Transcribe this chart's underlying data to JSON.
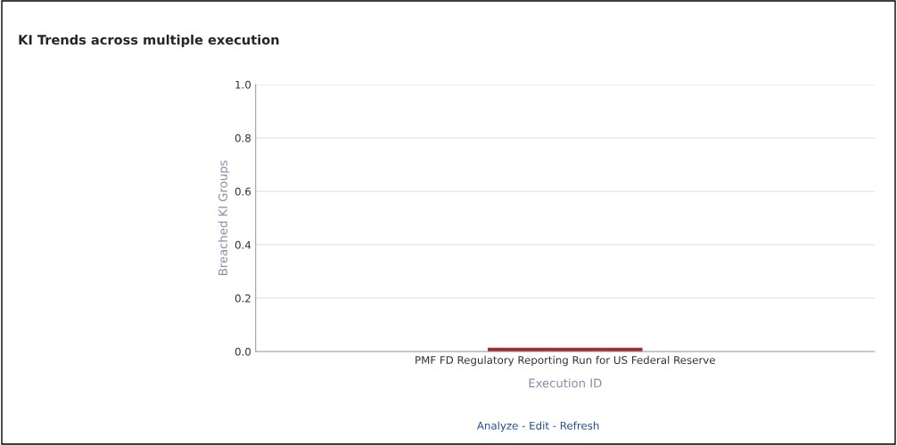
{
  "chart_data": {
    "type": "bar",
    "title": "KI Trends across multiple execution",
    "xlabel": "Execution ID",
    "ylabel": "Breached KI Groups",
    "categories": [
      "PMF FD Regulatory Reporting Run for US Federal Reserve"
    ],
    "values": [
      0
    ],
    "color": "#a52a2a",
    "ylim": [
      0,
      1
    ],
    "yticks": [
      {
        "value": 0,
        "label": "0.0"
      },
      {
        "value": 0.2,
        "label": "0.2"
      },
      {
        "value": 0.4,
        "label": "0.4"
      },
      {
        "value": 0.6,
        "label": "0.6"
      },
      {
        "value": 0.8,
        "label": "0.8"
      },
      {
        "value": 1,
        "label": "1.0"
      }
    ],
    "grid": "y",
    "legend": false,
    "annotations": [
      "Analyze - Edit - Refresh"
    ]
  }
}
